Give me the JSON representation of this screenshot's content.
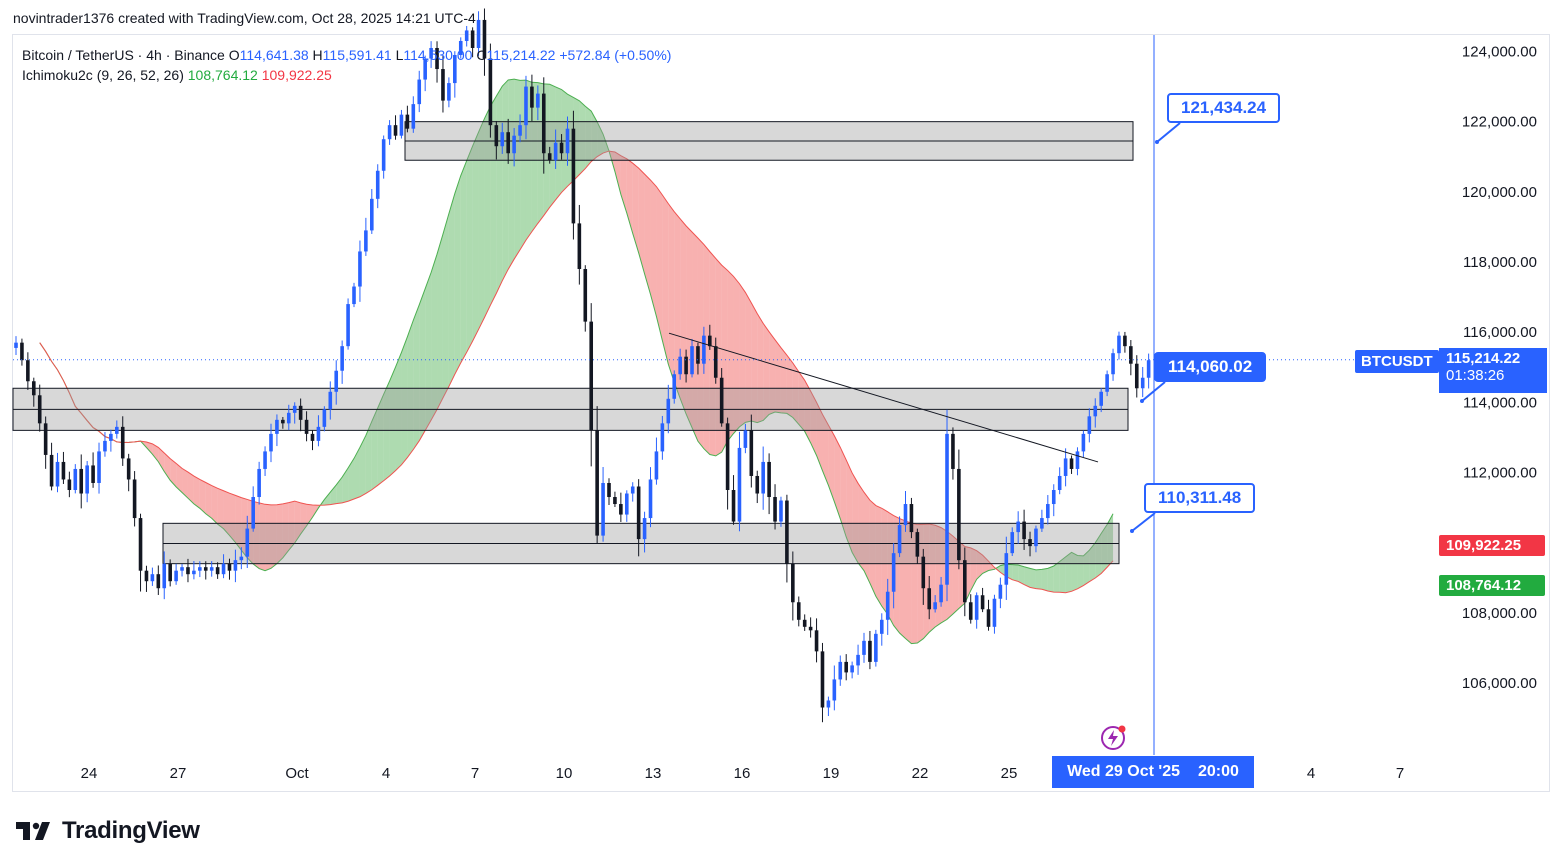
{
  "header": {
    "credit": "novintrader1376 created with TradingView.com, Oct 28, 2025 14:21 UTC-4"
  },
  "legend": {
    "symbol": "Bitcoin / TetherUS · 4h · Binance",
    "open_label": "O",
    "open": "114,641.38",
    "high_label": "H",
    "high": "115,591.41",
    "low_label": "L",
    "low": "114,530.00",
    "close_label": "C",
    "close": "115,214.22",
    "change": "+572.84 (+0.50%)",
    "indicator": "Ichimoku2c (9, 26, 52, 26)",
    "indicator_val1": "108,764.12",
    "indicator_val2": "109,922.25"
  },
  "colors": {
    "up": "#2962ff",
    "down": "#131722",
    "cloud_bull": "#4caf50",
    "cloud_bear": "#ef5350",
    "accent": "#2962ff",
    "green_tag": "#22ab3f",
    "red_tag": "#f23645"
  },
  "callouts": {
    "upper": "121,434.24",
    "mid": "114,060.02",
    "lower": "110,311.48"
  },
  "price_tags": {
    "symbol": "BTCUSDT",
    "last_price": "115,214.22",
    "countdown": "01:38:26",
    "span_a": "109,922.25",
    "span_b": "108,764.12"
  },
  "date_tag": {
    "date": "Wed 29 Oct '25",
    "time": "20:00"
  },
  "brand": {
    "name": "TradingView",
    "icon": "tradingview-logo-icon"
  },
  "flash_icon": "lightning-icon",
  "chart_data": {
    "type": "candlestick",
    "symbol": "BTCUSDT",
    "timeframe": "4h",
    "ylim": [
      104000,
      125000
    ],
    "y_ticks": [
      "106,000.00",
      "108,000.00",
      "110,000.00",
      "112,000.00",
      "114,000.00",
      "116,000.00",
      "118,000.00",
      "120,000.00",
      "122,000.00",
      "124,000.00"
    ],
    "x_ticks": [
      "24",
      "27",
      "Oct",
      "4",
      "7",
      "10",
      "13",
      "16",
      "19",
      "22",
      "25",
      "4",
      "7"
    ],
    "zones": [
      {
        "from": 120900,
        "to": 122000
      },
      {
        "from": 113200,
        "to": 114400
      },
      {
        "from": 109400,
        "to": 110550
      }
    ],
    "trendline": {
      "from": 115970,
      "to": 112300
    },
    "last_price": 115214.22,
    "closes": [
      115700,
      115200,
      114600,
      114200,
      113400,
      112500,
      111600,
      112300,
      111800,
      111500,
      112100,
      111400,
      112200,
      111700,
      112600,
      112900,
      113100,
      113300,
      112400,
      111800,
      110700,
      109200,
      108900,
      109100,
      108700,
      109400,
      108900,
      109200,
      109300,
      109100,
      109200,
      109300,
      109200,
      109300,
      109100,
      109400,
      109200,
      109500,
      109600,
      110400,
      111300,
      112100,
      112600,
      113100,
      113500,
      113400,
      113700,
      113900,
      113500,
      113100,
      112900,
      113300,
      113800,
      114300,
      114900,
      115600,
      116800,
      117300,
      118300,
      118900,
      119800,
      120600,
      121500,
      121900,
      121600,
      122200,
      121800,
      122500,
      123200,
      123800,
      124100,
      123500,
      122600,
      123100,
      123900,
      124300,
      124600,
      124100,
      124900,
      123800,
      121900,
      121300,
      121700,
      121100,
      121600,
      121900,
      123000,
      122400,
      122800,
      121100,
      120900,
      121400,
      121100,
      121800,
      119100,
      117800,
      116300,
      113200,
      110200,
      111700,
      111300,
      111100,
      110800,
      111400,
      111600,
      110100,
      110700,
      111800,
      112600,
      113400,
      114100,
      114800,
      115300,
      114800,
      115600,
      115100,
      115900,
      115600,
      114700,
      113400,
      111500,
      110600,
      112700,
      113200,
      111900,
      111400,
      112300,
      111300,
      110600,
      111200,
      109400,
      108300,
      107800,
      107600,
      107500,
      106900,
      105300,
      105500,
      106100,
      106600,
      106300,
      106500,
      106800,
      107200,
      106600,
      107400,
      107800,
      108600,
      109700,
      110500,
      111100,
      110300,
      109600,
      108700,
      108100,
      108300,
      108800,
      113100,
      112100,
      109500,
      108300,
      107800,
      108500,
      108100,
      107600,
      108400,
      108800,
      109700,
      110300,
      110600,
      110100,
      109900,
      110400,
      110700,
      111100,
      111500,
      111900,
      112400,
      112100,
      112600,
      113100,
      113600,
      113900,
      114300,
      114800,
      115400,
      115900,
      115600,
      115100,
      114400,
      114700,
      115200
    ]
  }
}
